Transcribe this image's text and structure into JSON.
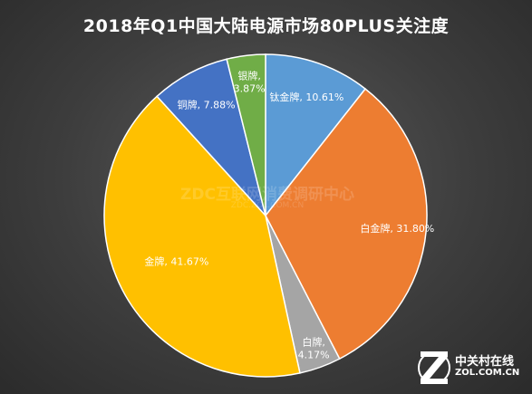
{
  "title": "2018年Q1中国大陆电源市场80PLUS关注度",
  "watermark": {
    "main": "ZDC互联网消费调研中心",
    "sub": "ZDC.ZOL.COM.CN"
  },
  "logo": {
    "cn": "中关村在线",
    "url": "ZOL.COM.CN",
    "icon": "zol-logo-icon"
  },
  "chart_data": {
    "type": "pie",
    "title": "2018年Q1中国大陆电源市场80PLUS关注度",
    "slices": [
      {
        "label": "钛金牌",
        "value": 10.61,
        "text": "钛金牌, 10.61%",
        "color": "#5b9bd5"
      },
      {
        "label": "白金牌",
        "value": 31.8,
        "text": "白金牌, 31.80%",
        "color": "#ed7d31"
      },
      {
        "label": "白牌",
        "value": 4.17,
        "text_lines": [
          "白牌,",
          "4.17%"
        ],
        "color": "#a5a5a5"
      },
      {
        "label": "金牌",
        "value": 41.67,
        "text": "金牌, 41.67%",
        "color": "#ffc000"
      },
      {
        "label": "铜牌",
        "value": 7.88,
        "text": "铜牌, 7.88%",
        "color": "#4472c4"
      },
      {
        "label": "银牌",
        "value": 3.87,
        "text_lines": [
          "银牌,",
          "3.87%"
        ],
        "color": "#70ad47"
      }
    ]
  }
}
